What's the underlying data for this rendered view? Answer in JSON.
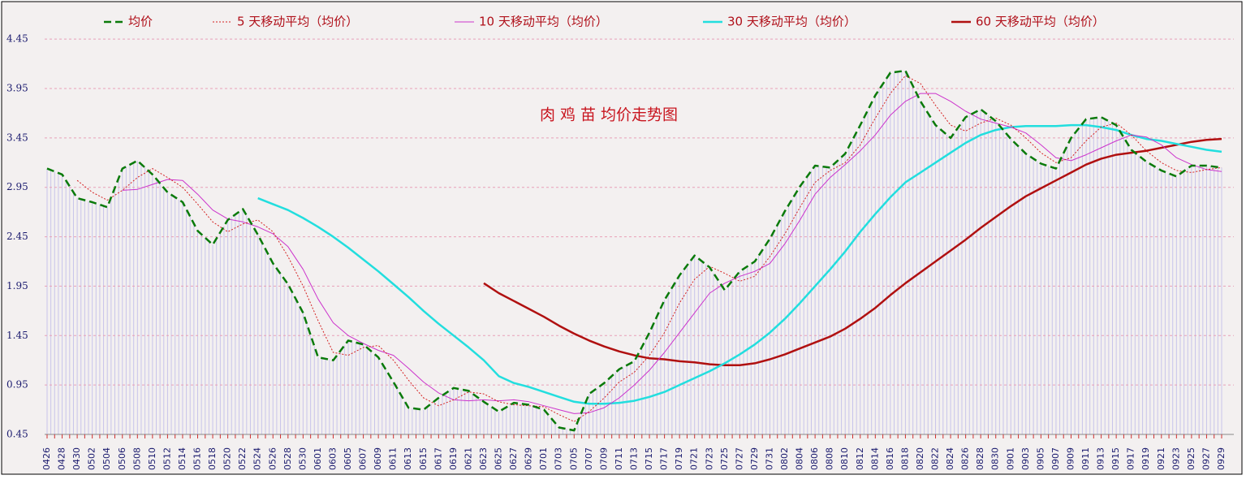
{
  "chart_data": {
    "type": "line",
    "title": "肉 鸡 苗 均价走势图",
    "categories": [
      "0426",
      "0428",
      "0430",
      "0502",
      "0504",
      "0506",
      "0508",
      "0510",
      "0512",
      "0514",
      "0516",
      "0518",
      "0520",
      "0522",
      "0524",
      "0526",
      "0528",
      "0530",
      "0601",
      "0603",
      "0605",
      "0607",
      "0609",
      "0611",
      "0613",
      "0615",
      "0617",
      "0619",
      "0621",
      "0623",
      "0625",
      "0627",
      "0629",
      "0701",
      "0703",
      "0705",
      "0707",
      "0709",
      "0711",
      "0713",
      "0715",
      "0717",
      "0719",
      "0721",
      "0723",
      "0725",
      "0727",
      "0729",
      "0731",
      "0802",
      "0804",
      "0806",
      "0808",
      "0810",
      "0812",
      "0814",
      "0816",
      "0818",
      "0820",
      "0822",
      "0824",
      "0826",
      "0828",
      "0830",
      "0901",
      "0903",
      "0905",
      "0907",
      "0909",
      "0911",
      "0913",
      "0915",
      "0917",
      "0919",
      "0921",
      "0923",
      "0925",
      "0927",
      "0929"
    ],
    "series": [
      {
        "name": "均价",
        "color": "#0a7a0a",
        "values": [
          3.14,
          3.08,
          2.84,
          2.8,
          2.75,
          3.14,
          3.22,
          3.08,
          2.9,
          2.8,
          2.51,
          2.37,
          2.62,
          2.73,
          2.47,
          2.18,
          1.97,
          1.68,
          1.23,
          1.2,
          1.4,
          1.36,
          1.23,
          0.98,
          0.72,
          0.7,
          0.82,
          0.92,
          0.89,
          0.78,
          0.68,
          0.77,
          0.75,
          0.7,
          0.52,
          0.49,
          0.86,
          0.97,
          1.11,
          1.19,
          1.48,
          1.81,
          2.06,
          2.26,
          2.14,
          1.91,
          2.1,
          2.2,
          2.43,
          2.71,
          2.96,
          3.17,
          3.15,
          3.29,
          3.58,
          3.88,
          4.11,
          4.13,
          3.82,
          3.58,
          3.45,
          3.66,
          3.74,
          3.62,
          3.44,
          3.29,
          3.19,
          3.14,
          3.45,
          3.64,
          3.66,
          3.58,
          3.33,
          3.21,
          3.12,
          3.06,
          3.17,
          3.17,
          3.15
        ]
      },
      {
        "name": "5 天移动平均（均价）",
        "color": "#d42020",
        "values": [
          null,
          null,
          3.02,
          2.9,
          2.82,
          2.92,
          3.05,
          3.14,
          3.05,
          2.95,
          2.78,
          2.6,
          2.5,
          2.58,
          2.62,
          2.5,
          2.25,
          1.95,
          1.6,
          1.28,
          1.25,
          1.33,
          1.35,
          1.2,
          1.0,
          0.82,
          0.74,
          0.8,
          0.88,
          0.86,
          0.78,
          0.75,
          0.74,
          0.73,
          0.65,
          0.58,
          0.68,
          0.82,
          0.98,
          1.08,
          1.25,
          1.48,
          1.78,
          2.02,
          2.15,
          2.08,
          2.0,
          2.05,
          2.25,
          2.48,
          2.75,
          3.0,
          3.12,
          3.2,
          3.38,
          3.65,
          3.9,
          4.08,
          4.0,
          3.78,
          3.58,
          3.52,
          3.6,
          3.65,
          3.58,
          3.45,
          3.3,
          3.2,
          3.25,
          3.42,
          3.56,
          3.6,
          3.48,
          3.32,
          3.2,
          3.12,
          3.1,
          3.13,
          3.15
        ]
      },
      {
        "name": "10 天移动平均（均价）",
        "color": "#cc33cc",
        "values": [
          null,
          null,
          null,
          null,
          null,
          2.92,
          2.93,
          2.98,
          3.03,
          3.02,
          2.88,
          2.72,
          2.63,
          2.6,
          2.55,
          2.48,
          2.35,
          2.12,
          1.82,
          1.58,
          1.45,
          1.37,
          1.3,
          1.25,
          1.12,
          0.98,
          0.87,
          0.8,
          0.79,
          0.8,
          0.79,
          0.8,
          0.78,
          0.74,
          0.7,
          0.66,
          0.67,
          0.72,
          0.82,
          0.95,
          1.1,
          1.28,
          1.48,
          1.68,
          1.88,
          1.98,
          2.05,
          2.1,
          2.18,
          2.38,
          2.62,
          2.88,
          3.05,
          3.18,
          3.32,
          3.48,
          3.68,
          3.82,
          3.9,
          3.9,
          3.82,
          3.72,
          3.64,
          3.6,
          3.56,
          3.5,
          3.38,
          3.25,
          3.22,
          3.28,
          3.35,
          3.42,
          3.48,
          3.46,
          3.38,
          3.25,
          3.18,
          3.13,
          3.11
        ]
      },
      {
        "name": "30 天移动平均（均价）",
        "color": "#22dede",
        "values": [
          null,
          null,
          null,
          null,
          null,
          null,
          null,
          null,
          null,
          null,
          null,
          null,
          null,
          null,
          2.84,
          2.78,
          2.72,
          2.64,
          2.55,
          2.45,
          2.34,
          2.22,
          2.1,
          1.97,
          1.84,
          1.7,
          1.57,
          1.45,
          1.33,
          1.2,
          1.04,
          0.97,
          0.93,
          0.88,
          0.83,
          0.78,
          0.76,
          0.76,
          0.77,
          0.79,
          0.83,
          0.88,
          0.95,
          1.02,
          1.09,
          1.17,
          1.26,
          1.36,
          1.48,
          1.62,
          1.78,
          1.95,
          2.12,
          2.3,
          2.5,
          2.68,
          2.85,
          3.0,
          3.1,
          3.2,
          3.3,
          3.4,
          3.48,
          3.53,
          3.56,
          3.57,
          3.57,
          3.57,
          3.58,
          3.58,
          3.56,
          3.53,
          3.48,
          3.44,
          3.42,
          3.39,
          3.36,
          3.33,
          3.31
        ]
      },
      {
        "name": "60 天移动平均（均价）",
        "color": "#b01010",
        "values": [
          null,
          null,
          null,
          null,
          null,
          null,
          null,
          null,
          null,
          null,
          null,
          null,
          null,
          null,
          null,
          null,
          null,
          null,
          null,
          null,
          null,
          null,
          null,
          null,
          null,
          null,
          null,
          null,
          null,
          1.98,
          1.88,
          1.8,
          1.72,
          1.64,
          1.55,
          1.47,
          1.4,
          1.34,
          1.29,
          1.25,
          1.22,
          1.21,
          1.19,
          1.18,
          1.16,
          1.15,
          1.15,
          1.17,
          1.21,
          1.26,
          1.32,
          1.38,
          1.44,
          1.52,
          1.62,
          1.73,
          1.86,
          1.98,
          2.09,
          2.2,
          2.31,
          2.42,
          2.54,
          2.65,
          2.76,
          2.86,
          2.94,
          3.02,
          3.1,
          3.18,
          3.24,
          3.28,
          3.3,
          3.32,
          3.35,
          3.38,
          3.41,
          3.43,
          3.44
        ]
      }
    ],
    "ylim": [
      0.45,
      4.78
    ],
    "yticks": [
      0.45,
      0.95,
      1.45,
      1.95,
      2.45,
      2.95,
      3.45,
      3.95,
      4.45
    ],
    "grid": true
  }
}
